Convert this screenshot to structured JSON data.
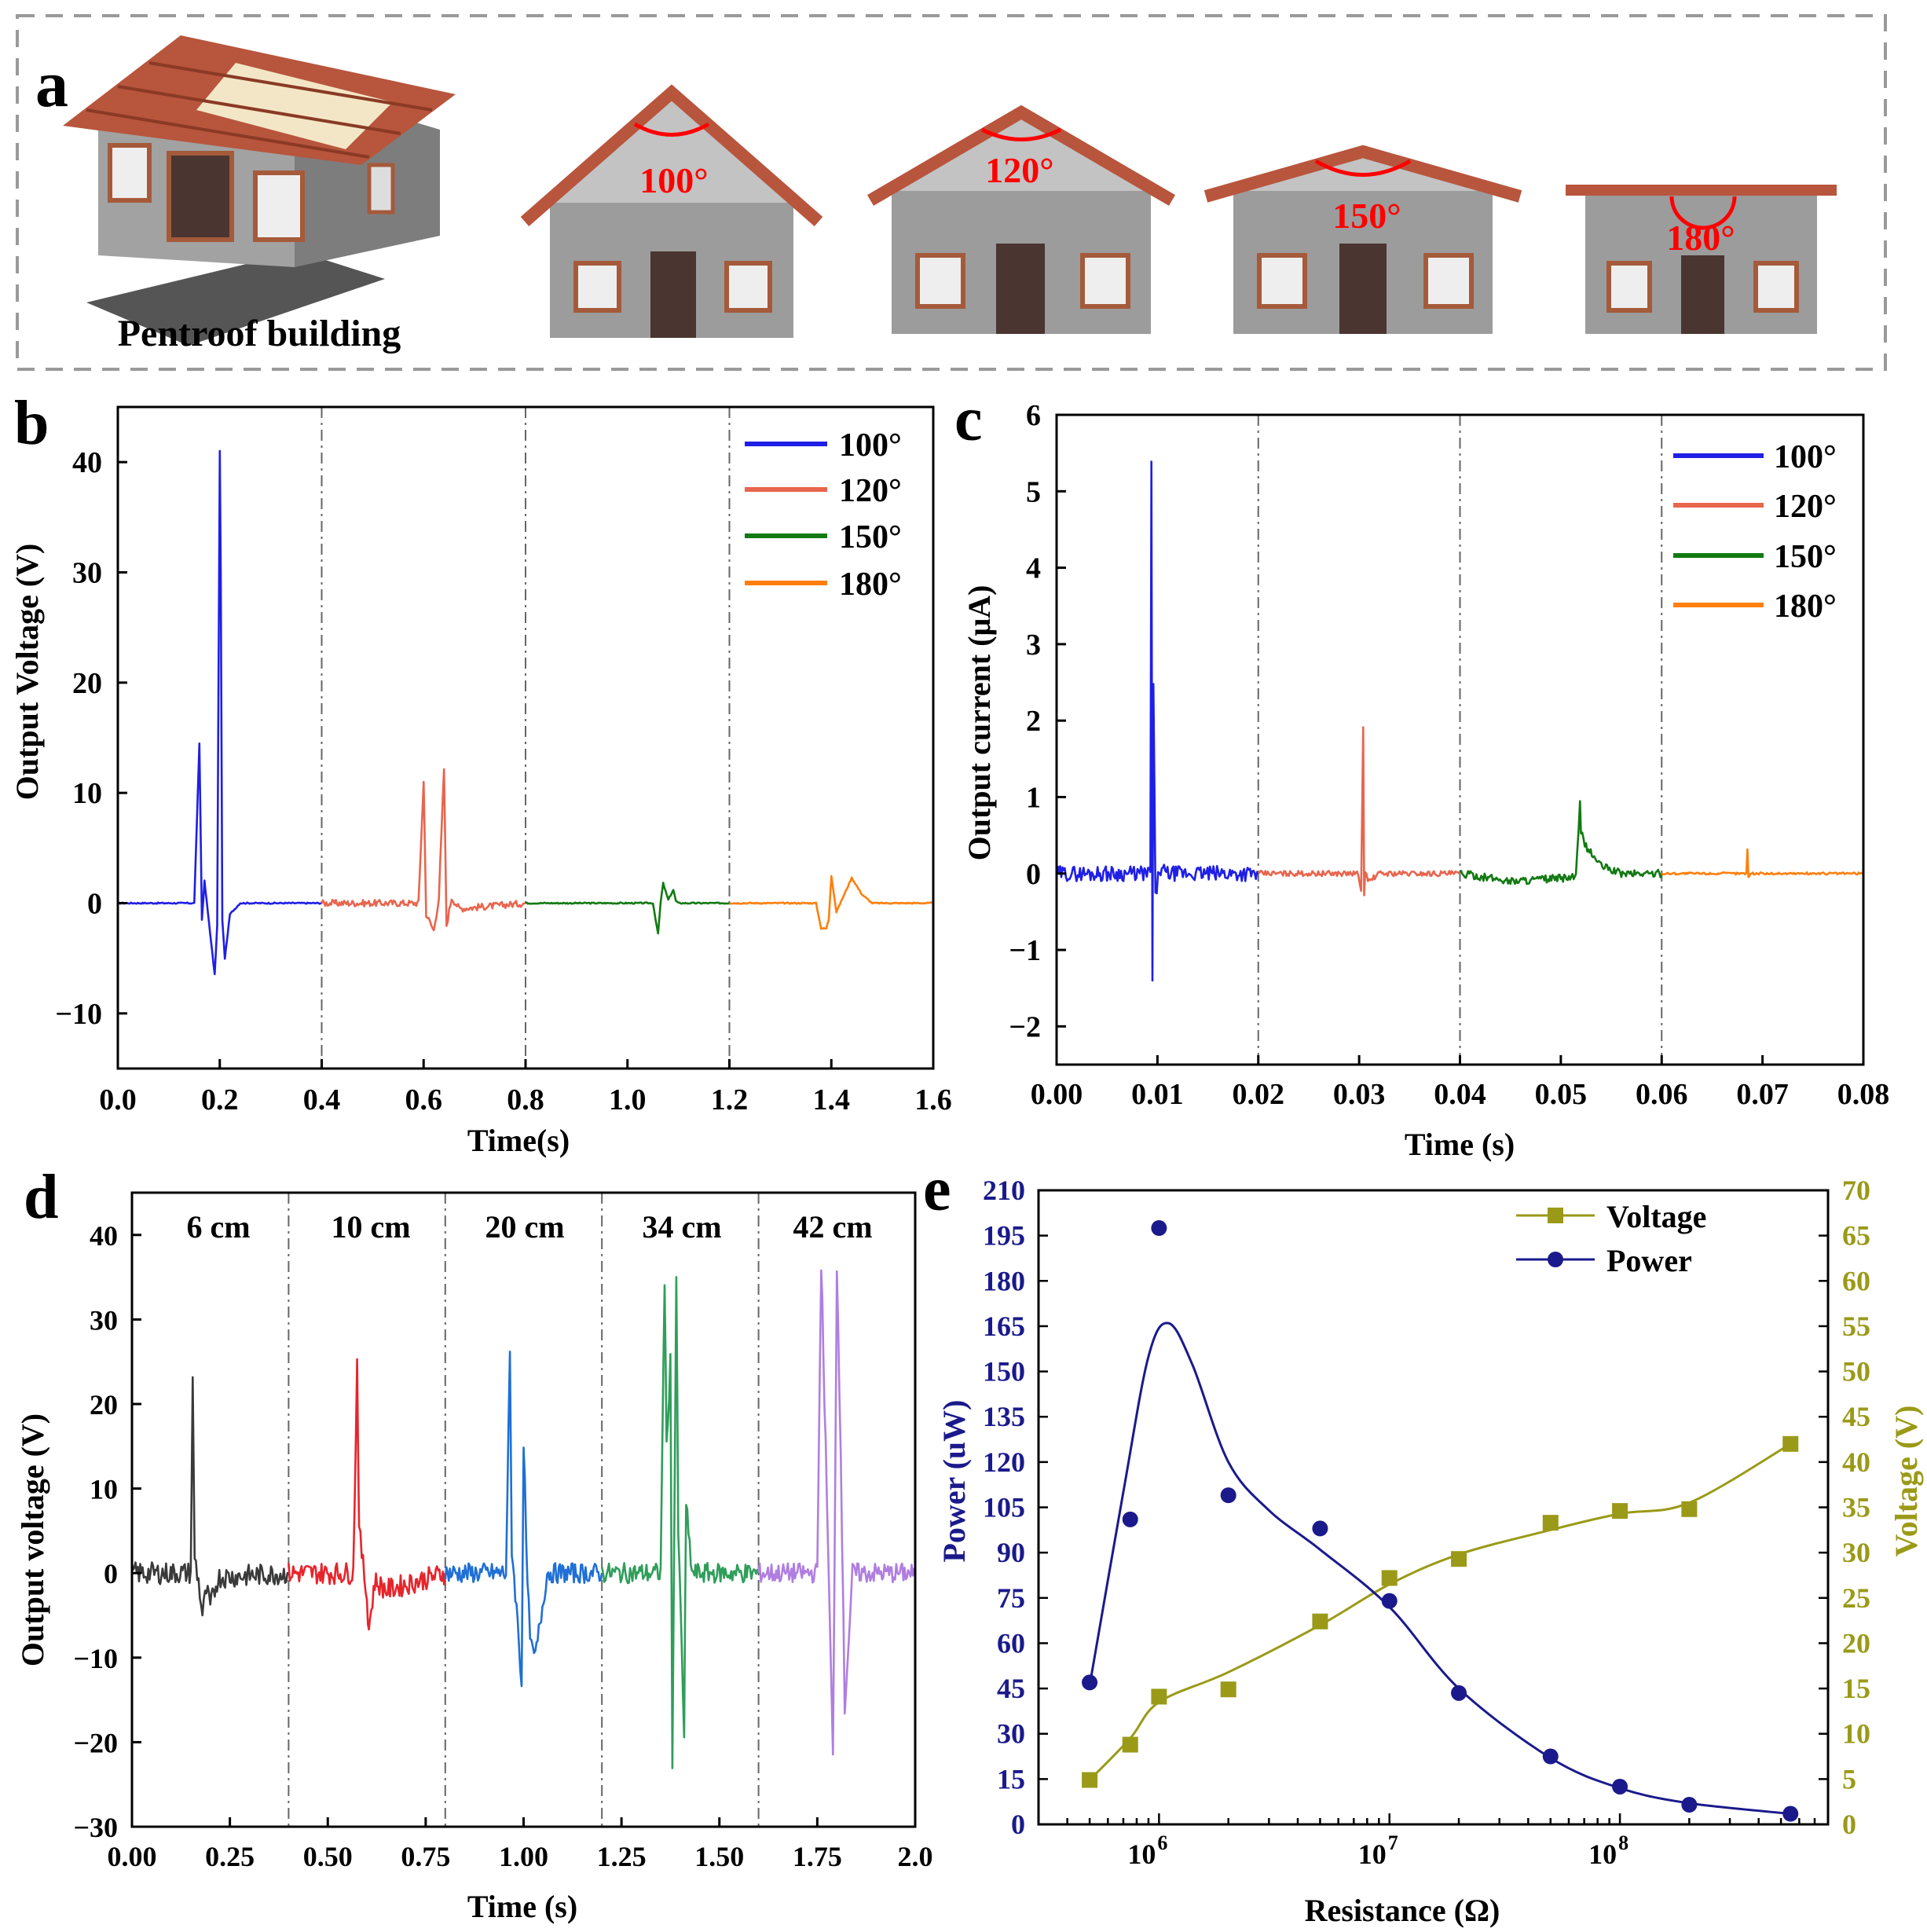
{
  "panel_a": {
    "label": "a",
    "caption": "Pentroof building",
    "angles": [
      "100°",
      "120°",
      "150°",
      "180°"
    ],
    "colors": {
      "roof": "#b8553d",
      "wall": "#9c9c9c",
      "gable": "#c3c3c3",
      "window": "#a55a3a",
      "door": "#4a3530",
      "angle": "#ff0000"
    }
  },
  "chart_data": [
    {
      "id": "b",
      "panel_label": "b",
      "type": "line",
      "title": "",
      "xlabel": "Time(s)",
      "ylabel": "Output Voltage (V)",
      "xlim": [
        0,
        1.6
      ],
      "ylim": [
        -15,
        45
      ],
      "xticks": [
        0.0,
        0.2,
        0.4,
        0.6,
        0.8,
        1.0,
        1.2,
        1.4,
        1.6
      ],
      "xtick_labels": [
        "0.0",
        "0.2",
        "0.4",
        "0.6",
        "0.8",
        "1.0",
        "1.2",
        "1.4",
        "1.6"
      ],
      "yticks": [
        -10,
        0,
        10,
        20,
        30,
        40
      ],
      "ytick_labels": [
        "−10",
        "0",
        "10",
        "20",
        "30",
        "40"
      ],
      "dividers": [
        0.4,
        0.8,
        1.2
      ],
      "legend_position": "top-right",
      "series": [
        {
          "name": "100°",
          "color": "#1f1fe6",
          "x": [
            0.0,
            0.15,
            0.16,
            0.165,
            0.17,
            0.19,
            0.195,
            0.2,
            0.202,
            0.205,
            0.21,
            0.22,
            0.24,
            0.4
          ],
          "y": [
            0,
            0,
            14.5,
            -1.5,
            2,
            -6.5,
            -2,
            41,
            30,
            -1.5,
            -5,
            -1,
            0,
            0
          ]
        },
        {
          "name": "120°",
          "color": "#e8654e",
          "x": [
            0.4,
            0.59,
            0.6,
            0.605,
            0.62,
            0.63,
            0.64,
            0.645,
            0.655,
            0.67,
            0.8
          ],
          "y": [
            0,
            0,
            11,
            -1,
            -2.5,
            0.5,
            12.2,
            -2,
            0.5,
            -0.5,
            0
          ],
          "noise": 0.3
        },
        {
          "name": "150°",
          "color": "#127a12",
          "x": [
            0.8,
            1.05,
            1.06,
            1.065,
            1.07,
            1.08,
            1.09,
            1.095,
            1.1,
            1.2
          ],
          "y": [
            0,
            0,
            -2.8,
            0,
            1.8,
            0.3,
            1.2,
            0.2,
            0,
            0
          ]
        },
        {
          "name": "180°",
          "color": "#ff7f0e",
          "x": [
            1.2,
            1.37,
            1.38,
            1.39,
            1.395,
            1.4,
            1.41,
            1.44,
            1.46,
            1.48,
            1.6
          ],
          "y": [
            0,
            0,
            -2.3,
            -2.3,
            -1.5,
            2.5,
            -0.8,
            2.3,
            0.8,
            0,
            0
          ]
        }
      ]
    },
    {
      "id": "c",
      "panel_label": "c",
      "type": "line",
      "title": "",
      "xlabel": "Time (s)",
      "ylabel": "Output current (μA)",
      "xlim": [
        0,
        0.08
      ],
      "ylim": [
        -2.5,
        6
      ],
      "xticks": [
        0,
        0.01,
        0.02,
        0.03,
        0.04,
        0.05,
        0.06,
        0.07,
        0.08
      ],
      "xtick_labels": [
        "0.00",
        "0.01",
        "0.02",
        "0.03",
        "0.04",
        "0.05",
        "0.06",
        "0.07",
        "0.08"
      ],
      "yticks": [
        -2,
        -1,
        0,
        1,
        2,
        3,
        4,
        5,
        6
      ],
      "ytick_labels": [
        "−2",
        "−1",
        "0",
        "1",
        "2",
        "3",
        "4",
        "5",
        "6"
      ],
      "dividers": [
        0.02,
        0.04,
        0.06
      ],
      "legend_position": "top-right",
      "series": [
        {
          "name": "100°",
          "color": "#1f1fe6",
          "x": [
            0,
            0.0093,
            0.0094,
            0.0095,
            0.0096,
            0.0098,
            0.0102,
            0.011,
            0.02
          ],
          "y": [
            0,
            0,
            5.4,
            -1.45,
            2.5,
            -0.3,
            0.05,
            0,
            0
          ],
          "noise": 0.1
        },
        {
          "name": "120°",
          "color": "#e8654e",
          "x": [
            0.02,
            0.0298,
            0.0302,
            0.0304,
            0.0305,
            0.0306,
            0.031,
            0.032,
            0.04
          ],
          "y": [
            0,
            0,
            -0.2,
            1.9,
            -0.25,
            0,
            -0.1,
            0,
            0
          ],
          "noise": 0.035
        },
        {
          "name": "150°",
          "color": "#127a12",
          "x": [
            0.04,
            0.045,
            0.0515,
            0.0519,
            0.052,
            0.0525,
            0.054,
            0.056,
            0.06
          ],
          "y": [
            0,
            -0.1,
            -0.05,
            0.9,
            0.55,
            0.35,
            0.1,
            0,
            0
          ],
          "noise": 0.05
        },
        {
          "name": "180°",
          "color": "#ff7f0e",
          "x": [
            0.06,
            0.0684,
            0.0685,
            0.0686,
            0.0688,
            0.08
          ],
          "y": [
            0,
            0,
            0.33,
            -0.05,
            0,
            0
          ],
          "noise": 0.015
        }
      ]
    },
    {
      "id": "d",
      "panel_label": "d",
      "type": "line",
      "title": "",
      "xlabel": "Time (s)",
      "ylabel": "Output voltage (V)",
      "xlim": [
        0,
        2.0
      ],
      "ylim": [
        -30,
        45
      ],
      "xticks": [
        0,
        0.25,
        0.5,
        0.75,
        1.0,
        1.25,
        1.5,
        1.75,
        2.0
      ],
      "xtick_labels": [
        "0.00",
        "0.25",
        "0.50",
        "0.75",
        "1.00",
        "1.25",
        "1.50",
        "1.75",
        "2.0"
      ],
      "yticks": [
        -30,
        -20,
        -10,
        0,
        10,
        20,
        30,
        40
      ],
      "ytick_labels": [
        "−30",
        "−20",
        "−10",
        "0",
        "10",
        "20",
        "30",
        "40"
      ],
      "dividers": [
        0.4,
        0.8,
        1.2,
        1.6
      ],
      "segment_labels": [
        "6 cm",
        "10 cm",
        "20 cm",
        "34 cm",
        "42 cm"
      ],
      "series": [
        {
          "name": "6 cm",
          "color": "#3a3a3a",
          "x": [
            0,
            0.15,
            0.155,
            0.16,
            0.17,
            0.18,
            0.19,
            0.2,
            0.22,
            0.4
          ],
          "y": [
            0,
            0,
            22.5,
            2,
            -1,
            -5,
            -2,
            -4,
            -0.5,
            0
          ],
          "noise": 1.3
        },
        {
          "name": "10 cm",
          "color": "#e8242b",
          "x": [
            0.4,
            0.565,
            0.575,
            0.58,
            0.59,
            0.6,
            0.605,
            0.62,
            0.65,
            0.8
          ],
          "y": [
            0,
            0,
            25,
            5,
            1,
            -3,
            -6.5,
            -1,
            -2,
            0
          ],
          "noise": 1.3
        },
        {
          "name": "20 cm",
          "color": "#1f6fd6",
          "x": [
            0.8,
            0.955,
            0.965,
            0.97,
            0.985,
            0.995,
            1.0,
            1.01,
            1.02,
            1.03,
            1.06,
            1.2
          ],
          "y": [
            0,
            0,
            25.5,
            3,
            -6,
            -13,
            16,
            -2,
            -9,
            -10,
            0,
            0
          ],
          "noise": 1.2
        },
        {
          "name": "34 cm",
          "color": "#2f9e5a",
          "x": [
            1.2,
            1.35,
            1.36,
            1.365,
            1.375,
            1.38,
            1.39,
            1.395,
            1.41,
            1.415,
            1.43,
            1.6
          ],
          "y": [
            0,
            0,
            35,
            15,
            25,
            -22,
            35,
            5,
            -19,
            8,
            0,
            0
          ],
          "noise": 1.2
        },
        {
          "name": "42 cm",
          "color": "#b07ee0",
          "x": [
            1.6,
            1.75,
            1.76,
            1.78,
            1.79,
            1.8,
            1.81,
            1.82,
            1.84,
            2.0
          ],
          "y": [
            0,
            0,
            37,
            -2,
            -22,
            36,
            15,
            -16,
            0,
            0
          ],
          "noise": 1.2
        }
      ]
    },
    {
      "id": "e",
      "panel_label": "e",
      "type": "scatter",
      "title": "",
      "xlabel": "Resistance (Ω)",
      "ylabel": "Power (uW)",
      "y2label": "Voltage (V)",
      "xscale": "log",
      "xlim": [
        300000,
        800000000
      ],
      "ylim": [
        0,
        210
      ],
      "y2lim": [
        0,
        70
      ],
      "xticks": [
        1000000,
        10000000,
        100000000
      ],
      "xtick_base": "10",
      "xtick_exponents": [
        "6",
        "7",
        "8"
      ],
      "yticks": [
        0,
        15,
        30,
        45,
        60,
        75,
        90,
        105,
        120,
        135,
        150,
        165,
        180,
        195,
        210
      ],
      "ytick_labels": [
        "0",
        "15",
        "30",
        "45",
        "60",
        "75",
        "90",
        "105",
        "120",
        "135",
        "150",
        "165",
        "180",
        "195",
        "210"
      ],
      "y2ticks": [
        0,
        5,
        10,
        15,
        20,
        25,
        30,
        35,
        40,
        45,
        50,
        55,
        60,
        65,
        70
      ],
      "y2tick_labels": [
        "0",
        "5",
        "10",
        "15",
        "20",
        "25",
        "30",
        "35",
        "40",
        "45",
        "50",
        "55",
        "60",
        "65",
        "70"
      ],
      "legend_position": "top-right",
      "series": [
        {
          "name": "Voltage",
          "axis": "right",
          "marker": "square",
          "color": "#9a9a18",
          "x": [
            500000,
            750000,
            1000000,
            2000000,
            5000000,
            10000000,
            20000000,
            50000000,
            100000000,
            200000000,
            550000000
          ],
          "y": [
            4.9,
            8.8,
            14.1,
            14.9,
            22.4,
            27.2,
            29.3,
            33.3,
            34.6,
            34.8,
            42.0
          ],
          "fit_y": [
            4.9,
            9.5,
            13.5,
            16.8,
            22.0,
            26.5,
            29.8,
            32.5,
            34.3,
            35.5,
            42.0
          ]
        },
        {
          "name": "Power",
          "axis": "left",
          "marker": "circle",
          "color": "#1a1a8c",
          "x": [
            500000,
            750000,
            1000000,
            2000000,
            5000000,
            10000000,
            20000000,
            50000000,
            100000000,
            200000000,
            550000000
          ],
          "y": [
            47,
            101,
            197.5,
            109,
            98,
            74,
            43.5,
            22.5,
            12.5,
            6.5,
            3.5
          ],
          "fit_x": [
            500000,
            700000,
            900000,
            1100000,
            1400000,
            2000000,
            3000000,
            5000000,
            10000000,
            20000000,
            50000000,
            100000000,
            200000000,
            550000000
          ],
          "fit_y": [
            46,
            110,
            155,
            166,
            152,
            120,
            104,
            91,
            72,
            45,
            22,
            12,
            7,
            3.5
          ]
        }
      ]
    }
  ]
}
